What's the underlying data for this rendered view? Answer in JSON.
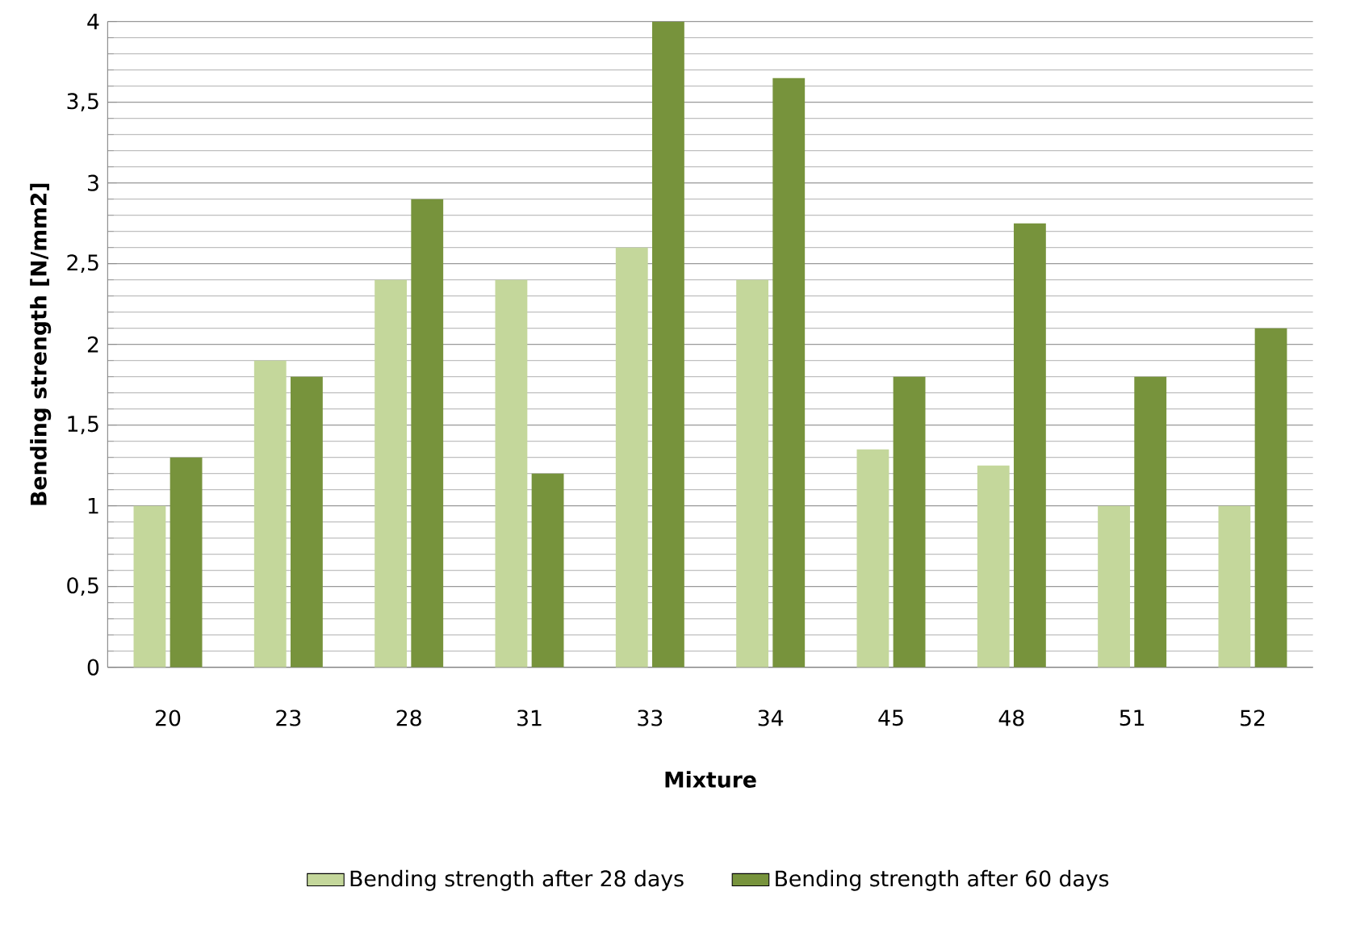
{
  "chart_data": {
    "type": "bar",
    "xlabel": "Mixture",
    "ylabel": "Bending strength [N/mm2]",
    "categories": [
      "20",
      "23",
      "28",
      "31",
      "33",
      "34",
      "45",
      "48",
      "51",
      "52"
    ],
    "series": [
      {
        "name": "Bending strength after 28 days",
        "color": "#c4d79b",
        "values": [
          1.0,
          1.9,
          2.4,
          2.4,
          2.6,
          2.4,
          1.35,
          1.25,
          1.0,
          1.0
        ]
      },
      {
        "name": "Bending strength after 60 days",
        "color": "#77933c",
        "values": [
          1.3,
          1.8,
          2.9,
          1.2,
          4.0,
          3.65,
          1.8,
          2.75,
          1.8,
          2.1
        ]
      }
    ],
    "ylim": [
      0,
      4
    ],
    "yticks": [
      0,
      {
        "value": 0.5,
        "label": "0,5"
      },
      1,
      {
        "value": 1.5,
        "label": "1,5"
      },
      2,
      {
        "value": 2.5,
        "label": "2,5"
      },
      3,
      {
        "value": 3.5,
        "label": "3,5"
      },
      4
    ],
    "grid": "y",
    "legend": "bottom"
  }
}
